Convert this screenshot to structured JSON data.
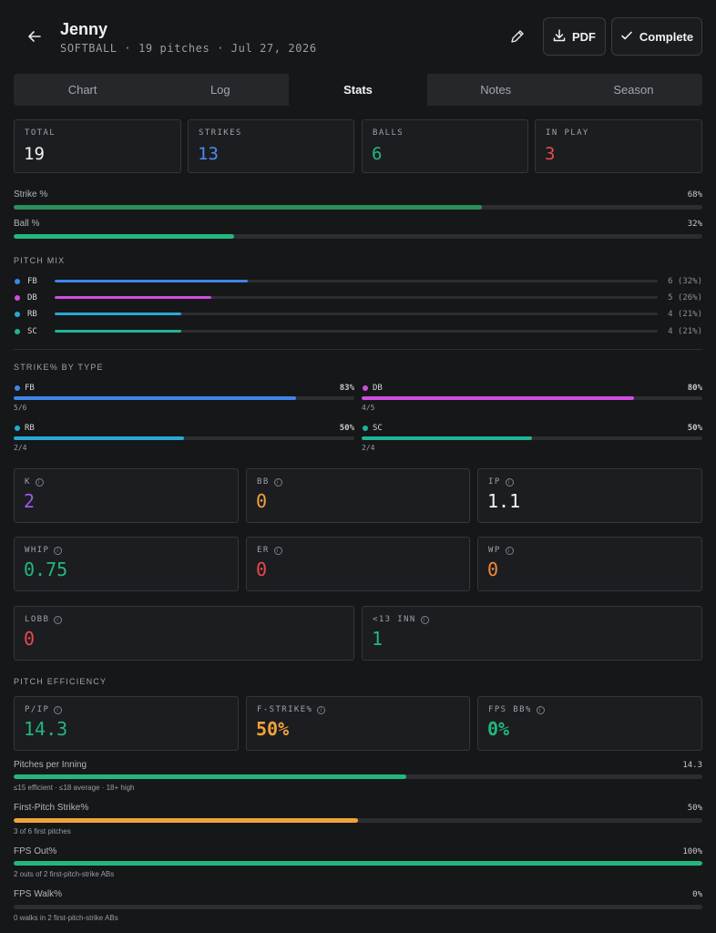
{
  "header": {
    "title": "Jenny",
    "subtitle": "SOFTBALL · 19 pitches · Jul 27, 2026",
    "pdf_label": "PDF",
    "complete_label": "Complete"
  },
  "tabs": [
    {
      "label": "Chart",
      "active": false
    },
    {
      "label": "Log",
      "active": false
    },
    {
      "label": "Stats",
      "active": true
    },
    {
      "label": "Notes",
      "active": false
    },
    {
      "label": "Season",
      "active": false
    }
  ],
  "summary": [
    {
      "label": "TOTAL",
      "value": "19",
      "color": "#f2f3f5"
    },
    {
      "label": "STRIKES",
      "value": "13",
      "color": "#4a8dea"
    },
    {
      "label": "BALLS",
      "value": "6",
      "color": "#22b77e"
    },
    {
      "label": "IN PLAY",
      "value": "3",
      "color": "#e9484d"
    }
  ],
  "rates": [
    {
      "label": "Strike %",
      "pct": "68%",
      "fraction": 0.68,
      "color": "#2e8e5d"
    },
    {
      "label": "Ball %",
      "pct": "32%",
      "fraction": 0.32,
      "color": "#22b77e"
    }
  ],
  "pitch_mix": {
    "title": "PITCH MIX",
    "items": [
      {
        "label": "FB",
        "count": "6 (32%)",
        "fraction": 0.32,
        "color": "#3f86e8"
      },
      {
        "label": "DB",
        "count": "5 (26%)",
        "fraction": 0.26,
        "color": "#d04ee0"
      },
      {
        "label": "RB",
        "count": "4 (21%)",
        "fraction": 0.21,
        "color": "#27a9d4"
      },
      {
        "label": "SC",
        "count": "4 (21%)",
        "fraction": 0.21,
        "color": "#20b497"
      }
    ]
  },
  "strike_by_type": {
    "title": "STRIKE% BY TYPE",
    "items": [
      {
        "label": "FB",
        "pct": "83%",
        "fraction": 0.83,
        "ratio": "5/6",
        "color": "#3f86e8"
      },
      {
        "label": "DB",
        "pct": "80%",
        "fraction": 0.8,
        "ratio": "4/5",
        "color": "#d04ee0"
      },
      {
        "label": "RB",
        "pct": "50%",
        "fraction": 0.5,
        "ratio": "2/4",
        "color": "#27a9d4"
      },
      {
        "label": "SC",
        "pct": "50%",
        "fraction": 0.5,
        "ratio": "2/4",
        "color": "#20b497"
      }
    ]
  },
  "stat_cards": [
    {
      "label": "K",
      "value": "2",
      "color": "#9b5de5"
    },
    {
      "label": "BB",
      "value": "0",
      "color": "#f1a23a"
    },
    {
      "label": "IP",
      "value": "1.1",
      "color": "#f2f3f5"
    },
    {
      "label": "WHIP",
      "value": "0.75",
      "color": "#22b77e"
    },
    {
      "label": "ER",
      "value": "0",
      "color": "#e9484d"
    },
    {
      "label": "WP",
      "value": "0",
      "color": "#f08a3a"
    },
    {
      "label": "LOBB",
      "value": "0",
      "color": "#e9484d"
    },
    {
      "label": "<13 INN",
      "value": "1",
      "color": "#22b77e"
    }
  ],
  "efficiency": {
    "title": "PITCH EFFICIENCY",
    "cards": [
      {
        "label": "P/IP",
        "value": "14.3",
        "color": "#22b77e"
      },
      {
        "label": "F-STRIKE%",
        "value": "50%",
        "color": "#f1a23a"
      },
      {
        "label": "FPS BB%",
        "value": "0%",
        "color": "#22b77e"
      }
    ],
    "bars": [
      {
        "label": "Pitches per Inning",
        "pct": "14.3",
        "fraction": 0.57,
        "note": "≤15 efficient · ≤18 average · 18+ high",
        "color": "#22b77e"
      },
      {
        "label": "First-Pitch Strike%",
        "pct": "50%",
        "fraction": 0.5,
        "note": "3 of 6 first pitches",
        "color": "#f1a23a"
      },
      {
        "label": "FPS Out%",
        "pct": "100%",
        "fraction": 1.0,
        "note": "2 outs of 2 first-pitch-strike ABs",
        "color": "#22b77e"
      },
      {
        "label": "FPS Walk%",
        "pct": "0%",
        "fraction": 0.0,
        "note": "0 walks in 2 first-pitch-strike ABs",
        "color": "#22b77e"
      }
    ]
  }
}
